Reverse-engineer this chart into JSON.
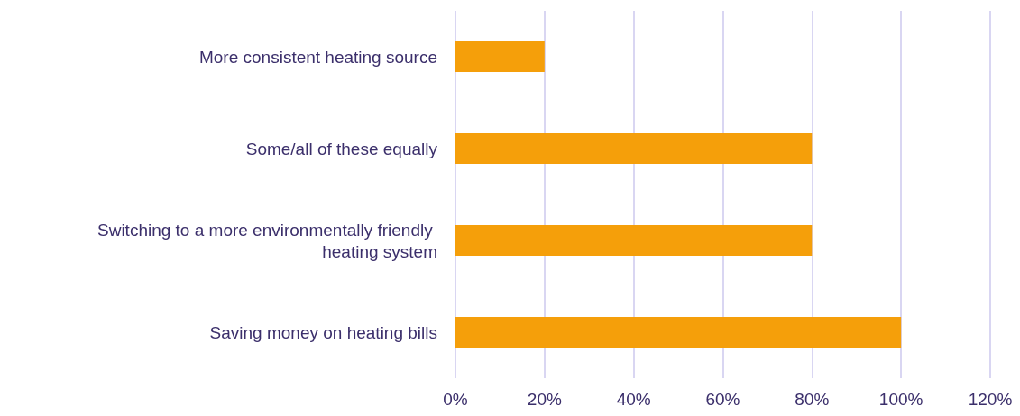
{
  "chart_data": {
    "type": "bar",
    "orientation": "horizontal",
    "categories": [
      "More consistent heating source",
      "Some/all of these equally",
      "Switching to a more environmentally friendly heating system",
      "Saving money on heating bills"
    ],
    "values": [
      20,
      80,
      80,
      100
    ],
    "color": "#f59f0a",
    "xlim": [
      0,
      120
    ],
    "xticks": [
      {
        "value": 0,
        "label": "0%"
      },
      {
        "value": 20,
        "label": "20%"
      },
      {
        "value": 40,
        "label": "40%"
      },
      {
        "value": 60,
        "label": "60%"
      },
      {
        "value": 80,
        "label": "80%"
      },
      {
        "value": 100,
        "label": "100%"
      },
      {
        "value": 120,
        "label": "120%"
      }
    ],
    "grid": "x"
  }
}
